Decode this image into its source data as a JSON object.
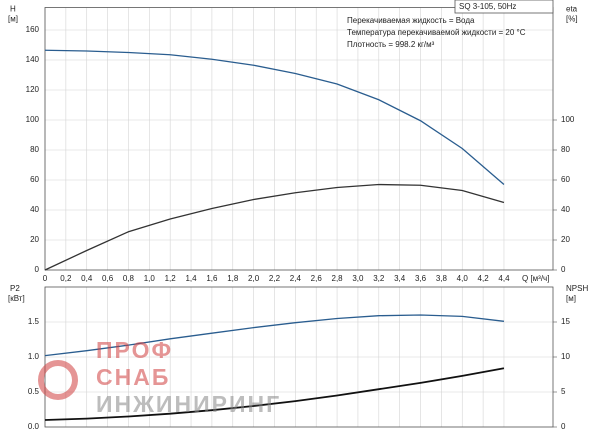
{
  "chart_data": [
    {
      "type": "line",
      "title": "SQ 3-105, 50Hz",
      "annotations": [
        "Перекачиваемая жидкость = Вода",
        "Температура перекачиваемой жидкости = 20 °C",
        "Плотность = 998.2 кг/м³"
      ],
      "ylabel": "H",
      "yunit": "[м]",
      "y2label": "eta",
      "y2unit": "[%]",
      "xlabel": "Q [м³/ч]",
      "x": [
        0,
        0.4,
        0.8,
        1.2,
        1.6,
        2.0,
        2.4,
        2.8,
        3.2,
        3.6,
        4.0,
        4.4
      ],
      "series": [
        {
          "color": "#2a5d8f",
          "axis": "y",
          "values": [
            146.5,
            146,
            145,
            143.5,
            140.5,
            136.5,
            131,
            124,
            113.5,
            99.5,
            81,
            57
          ]
        },
        {
          "color": "#333333",
          "axis": "y2",
          "values": [
            0,
            13,
            25.5,
            34,
            41,
            47,
            51.5,
            55,
            57,
            56.5,
            53,
            45
          ]
        }
      ],
      "xlim": [
        0,
        4.87
      ],
      "xticks": [
        0,
        {
          "value": 0.2,
          "label": "0,2"
        },
        {
          "value": 0.4,
          "label": "0,4"
        },
        {
          "value": 0.6,
          "label": "0,6"
        },
        {
          "value": 0.8,
          "label": "0,8"
        },
        {
          "value": 1.0,
          "label": "1,0"
        },
        {
          "value": 1.2,
          "label": "1,2"
        },
        {
          "value": 1.4,
          "label": "1,4"
        },
        {
          "value": 1.6,
          "label": "1,6"
        },
        {
          "value": 1.8,
          "label": "1,8"
        },
        {
          "value": 2.0,
          "label": "2,0"
        },
        {
          "value": 2.2,
          "label": "2,2"
        },
        {
          "value": 2.4,
          "label": "2,4"
        },
        {
          "value": 2.6,
          "label": "2,6"
        },
        {
          "value": 2.8,
          "label": "2,8"
        },
        {
          "value": 3.0,
          "label": "3,0"
        },
        {
          "value": 3.2,
          "label": "3,2"
        },
        {
          "value": 3.4,
          "label": "3,4"
        },
        {
          "value": 3.6,
          "label": "3,6"
        },
        {
          "value": 3.8,
          "label": "3,8"
        },
        {
          "value": 4.0,
          "label": "4,0"
        },
        {
          "value": 4.2,
          "label": "4,2"
        },
        {
          "value": 4.4,
          "label": "4,4"
        }
      ],
      "ylim": [
        0,
        175
      ],
      "yticks": [
        0,
        20,
        40,
        60,
        80,
        100,
        120,
        140,
        160
      ],
      "y2lim": [
        0,
        175
      ],
      "y2ticks": [
        0,
        20,
        40,
        60,
        80,
        100
      ],
      "grid": true
    },
    {
      "type": "line",
      "ylabel": "P2",
      "yunit": "[кВт]",
      "y2label": "NPSH",
      "y2unit": "[м]",
      "x": [
        0,
        0.4,
        0.8,
        1.2,
        1.6,
        2.0,
        2.4,
        2.8,
        3.2,
        3.6,
        4.0,
        4.4
      ],
      "series": [
        {
          "color": "#2a5d8f",
          "axis": "y",
          "values": [
            1.02,
            1.09,
            1.17,
            1.26,
            1.34,
            1.42,
            1.49,
            1.55,
            1.59,
            1.6,
            1.58,
            1.51
          ]
        },
        {
          "color": "#111111",
          "axis": "y2",
          "values": [
            1.0,
            1.2,
            1.5,
            1.9,
            2.4,
            3.0,
            3.7,
            4.5,
            5.4,
            6.3,
            7.3,
            8.4
          ]
        }
      ],
      "xlim": [
        0,
        4.87
      ],
      "ylim": [
        0,
        2
      ],
      "yticks": [
        {
          "value": 0,
          "label": "0.0"
        },
        {
          "value": 0.5,
          "label": "0.5"
        },
        {
          "value": 1.0,
          "label": "1.0"
        },
        {
          "value": 1.5,
          "label": "1.5"
        }
      ],
      "y2lim": [
        0,
        20
      ],
      "y2ticks": [
        0,
        5,
        10,
        15
      ],
      "grid": true
    }
  ],
  "watermark": [
    "ПРОФ",
    "СНАБ",
    "ИНЖИНИРИНГ"
  ]
}
